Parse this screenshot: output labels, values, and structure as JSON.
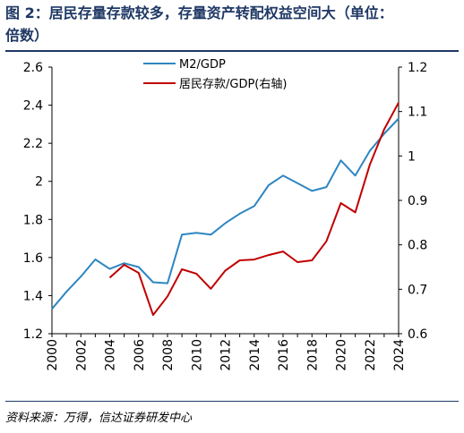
{
  "header": {
    "title_line1": "图 2：居民存量存款较多，存量资产转配权益空间大（单位：",
    "title_line2": "倍数）"
  },
  "footer": {
    "source": "资料来源：万得，信达证券研发中心"
  },
  "colors": {
    "m2": "#2e86c1",
    "deposit": "#c00000",
    "title": "#1f3864"
  },
  "chart_data": {
    "type": "line",
    "x": [
      2000,
      2001,
      2002,
      2003,
      2004,
      2005,
      2006,
      2007,
      2008,
      2009,
      2010,
      2011,
      2012,
      2013,
      2014,
      2015,
      2016,
      2017,
      2018,
      2019,
      2020,
      2021,
      2022,
      2023,
      2024
    ],
    "x_ticks": [
      "2000",
      "2002",
      "2004",
      "2006",
      "2008",
      "2010",
      "2012",
      "2014",
      "2016",
      "2018",
      "2020",
      "2022",
      "2024"
    ],
    "y_left_ticks": [
      "1.2",
      "1.4",
      "1.6",
      "1.8",
      "2",
      "2.2",
      "2.4",
      "2.6"
    ],
    "y_right_ticks": [
      "0.6",
      "0.7",
      "0.8",
      "0.9",
      "1",
      "1.1",
      "1.2"
    ],
    "ylim_left": [
      1.2,
      2.6
    ],
    "ylim_right": [
      0.6,
      1.2
    ],
    "grid": false,
    "legend_position": "top-left",
    "series": [
      {
        "name": "M2/GDP",
        "axis": "left",
        "values": [
          1.33,
          1.42,
          1.5,
          1.59,
          1.54,
          1.57,
          1.55,
          1.47,
          1.465,
          1.72,
          1.73,
          1.72,
          1.78,
          1.83,
          1.87,
          1.98,
          2.03,
          1.99,
          1.95,
          1.97,
          2.11,
          2.03,
          2.16,
          2.25,
          2.33
        ]
      },
      {
        "name": "居民存款/GDP(右轴)",
        "axis": "right",
        "values": [
          null,
          null,
          null,
          null,
          0.726,
          0.755,
          0.737,
          0.642,
          0.684,
          0.745,
          0.735,
          0.701,
          0.742,
          0.765,
          0.767,
          0.777,
          0.785,
          0.761,
          0.765,
          0.808,
          0.894,
          0.873,
          0.98,
          1.06,
          1.12
        ]
      }
    ]
  }
}
